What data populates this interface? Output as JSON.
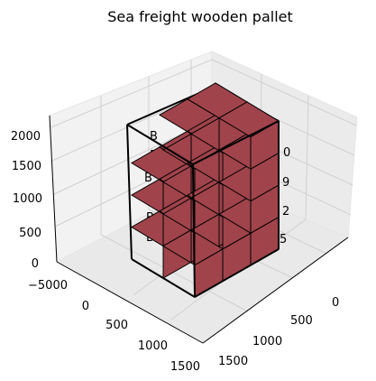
{
  "chart_data": {
    "type": "bar3d",
    "title": "Sea freight wooden pallet",
    "grid": true,
    "colors": {
      "box_face": "#a0434b",
      "box_edge": "#000000",
      "container_edge": "#000000",
      "pane": "#f2f2f2",
      "grid": "#d9d9d9"
    },
    "x_ticks": [
      "0",
      "500",
      "1000",
      "1500"
    ],
    "y_ticks": [
      "−5000",
      "0",
      "500",
      "1000",
      "1500"
    ],
    "z_ticks": [
      "0",
      "500",
      "1000",
      "1500",
      "2000"
    ],
    "z_tick_values": [
      0,
      500,
      1000,
      1500,
      2000
    ],
    "partially_hidden_left_labels": [
      "B",
      "B",
      "B",
      "B",
      "B",
      "B"
    ],
    "partially_hidden_right_labels": [
      "0",
      "9",
      "2",
      "5"
    ],
    "container": {
      "x": [
        0,
        1200
      ],
      "y": [
        0,
        800
      ],
      "z": [
        0,
        1600
      ]
    },
    "boxes": [
      {
        "x": 0,
        "y": 0,
        "z": 0,
        "dx": 400,
        "dy": 400,
        "dz": 400
      },
      {
        "x": 400,
        "y": 0,
        "z": 0,
        "dx": 400,
        "dy": 400,
        "dz": 400
      },
      {
        "x": 800,
        "y": 0,
        "z": 0,
        "dx": 400,
        "dy": 400,
        "dz": 400
      },
      {
        "x": 0,
        "y": 400,
        "z": 0,
        "dx": 400,
        "dy": 400,
        "dz": 400
      },
      {
        "x": 400,
        "y": 400,
        "z": 0,
        "dx": 400,
        "dy": 400,
        "dz": 400
      },
      {
        "x": 800,
        "y": 400,
        "z": 0,
        "dx": 400,
        "dy": 400,
        "dz": 400
      },
      {
        "x": 0,
        "y": 0,
        "z": 400,
        "dx": 400,
        "dy": 400,
        "dz": 400
      },
      {
        "x": 400,
        "y": 0,
        "z": 400,
        "dx": 400,
        "dy": 400,
        "dz": 400
      },
      {
        "x": 800,
        "y": 0,
        "z": 400,
        "dx": 400,
        "dy": 400,
        "dz": 400
      },
      {
        "x": 0,
        "y": 400,
        "z": 400,
        "dx": 400,
        "dy": 400,
        "dz": 400
      },
      {
        "x": 400,
        "y": 400,
        "z": 400,
        "dx": 400,
        "dy": 400,
        "dz": 400
      },
      {
        "x": 800,
        "y": 400,
        "z": 400,
        "dx": 400,
        "dy": 400,
        "dz": 400
      },
      {
        "x": 0,
        "y": 0,
        "z": 800,
        "dx": 400,
        "dy": 400,
        "dz": 400
      },
      {
        "x": 400,
        "y": 0,
        "z": 800,
        "dx": 400,
        "dy": 400,
        "dz": 400
      },
      {
        "x": 800,
        "y": 0,
        "z": 800,
        "dx": 400,
        "dy": 400,
        "dz": 400
      },
      {
        "x": 0,
        "y": 400,
        "z": 800,
        "dx": 400,
        "dy": 400,
        "dz": 400
      },
      {
        "x": 400,
        "y": 400,
        "z": 800,
        "dx": 400,
        "dy": 400,
        "dz": 400
      },
      {
        "x": 800,
        "y": 400,
        "z": 800,
        "dx": 400,
        "dy": 400,
        "dz": 400
      },
      {
        "x": 0,
        "y": 0,
        "z": 1200,
        "dx": 400,
        "dy": 400,
        "dz": 400
      },
      {
        "x": 400,
        "y": 0,
        "z": 1200,
        "dx": 400,
        "dy": 400,
        "dz": 400
      },
      {
        "x": 800,
        "y": 0,
        "z": 1200,
        "dx": 400,
        "dy": 400,
        "dz": 400
      },
      {
        "x": 0,
        "y": 400,
        "z": 1200,
        "dx": 400,
        "dy": 400,
        "dz": 400
      },
      {
        "x": 400,
        "y": 400,
        "z": 1200,
        "dx": 400,
        "dy": 400,
        "dz": 400
      }
    ]
  }
}
